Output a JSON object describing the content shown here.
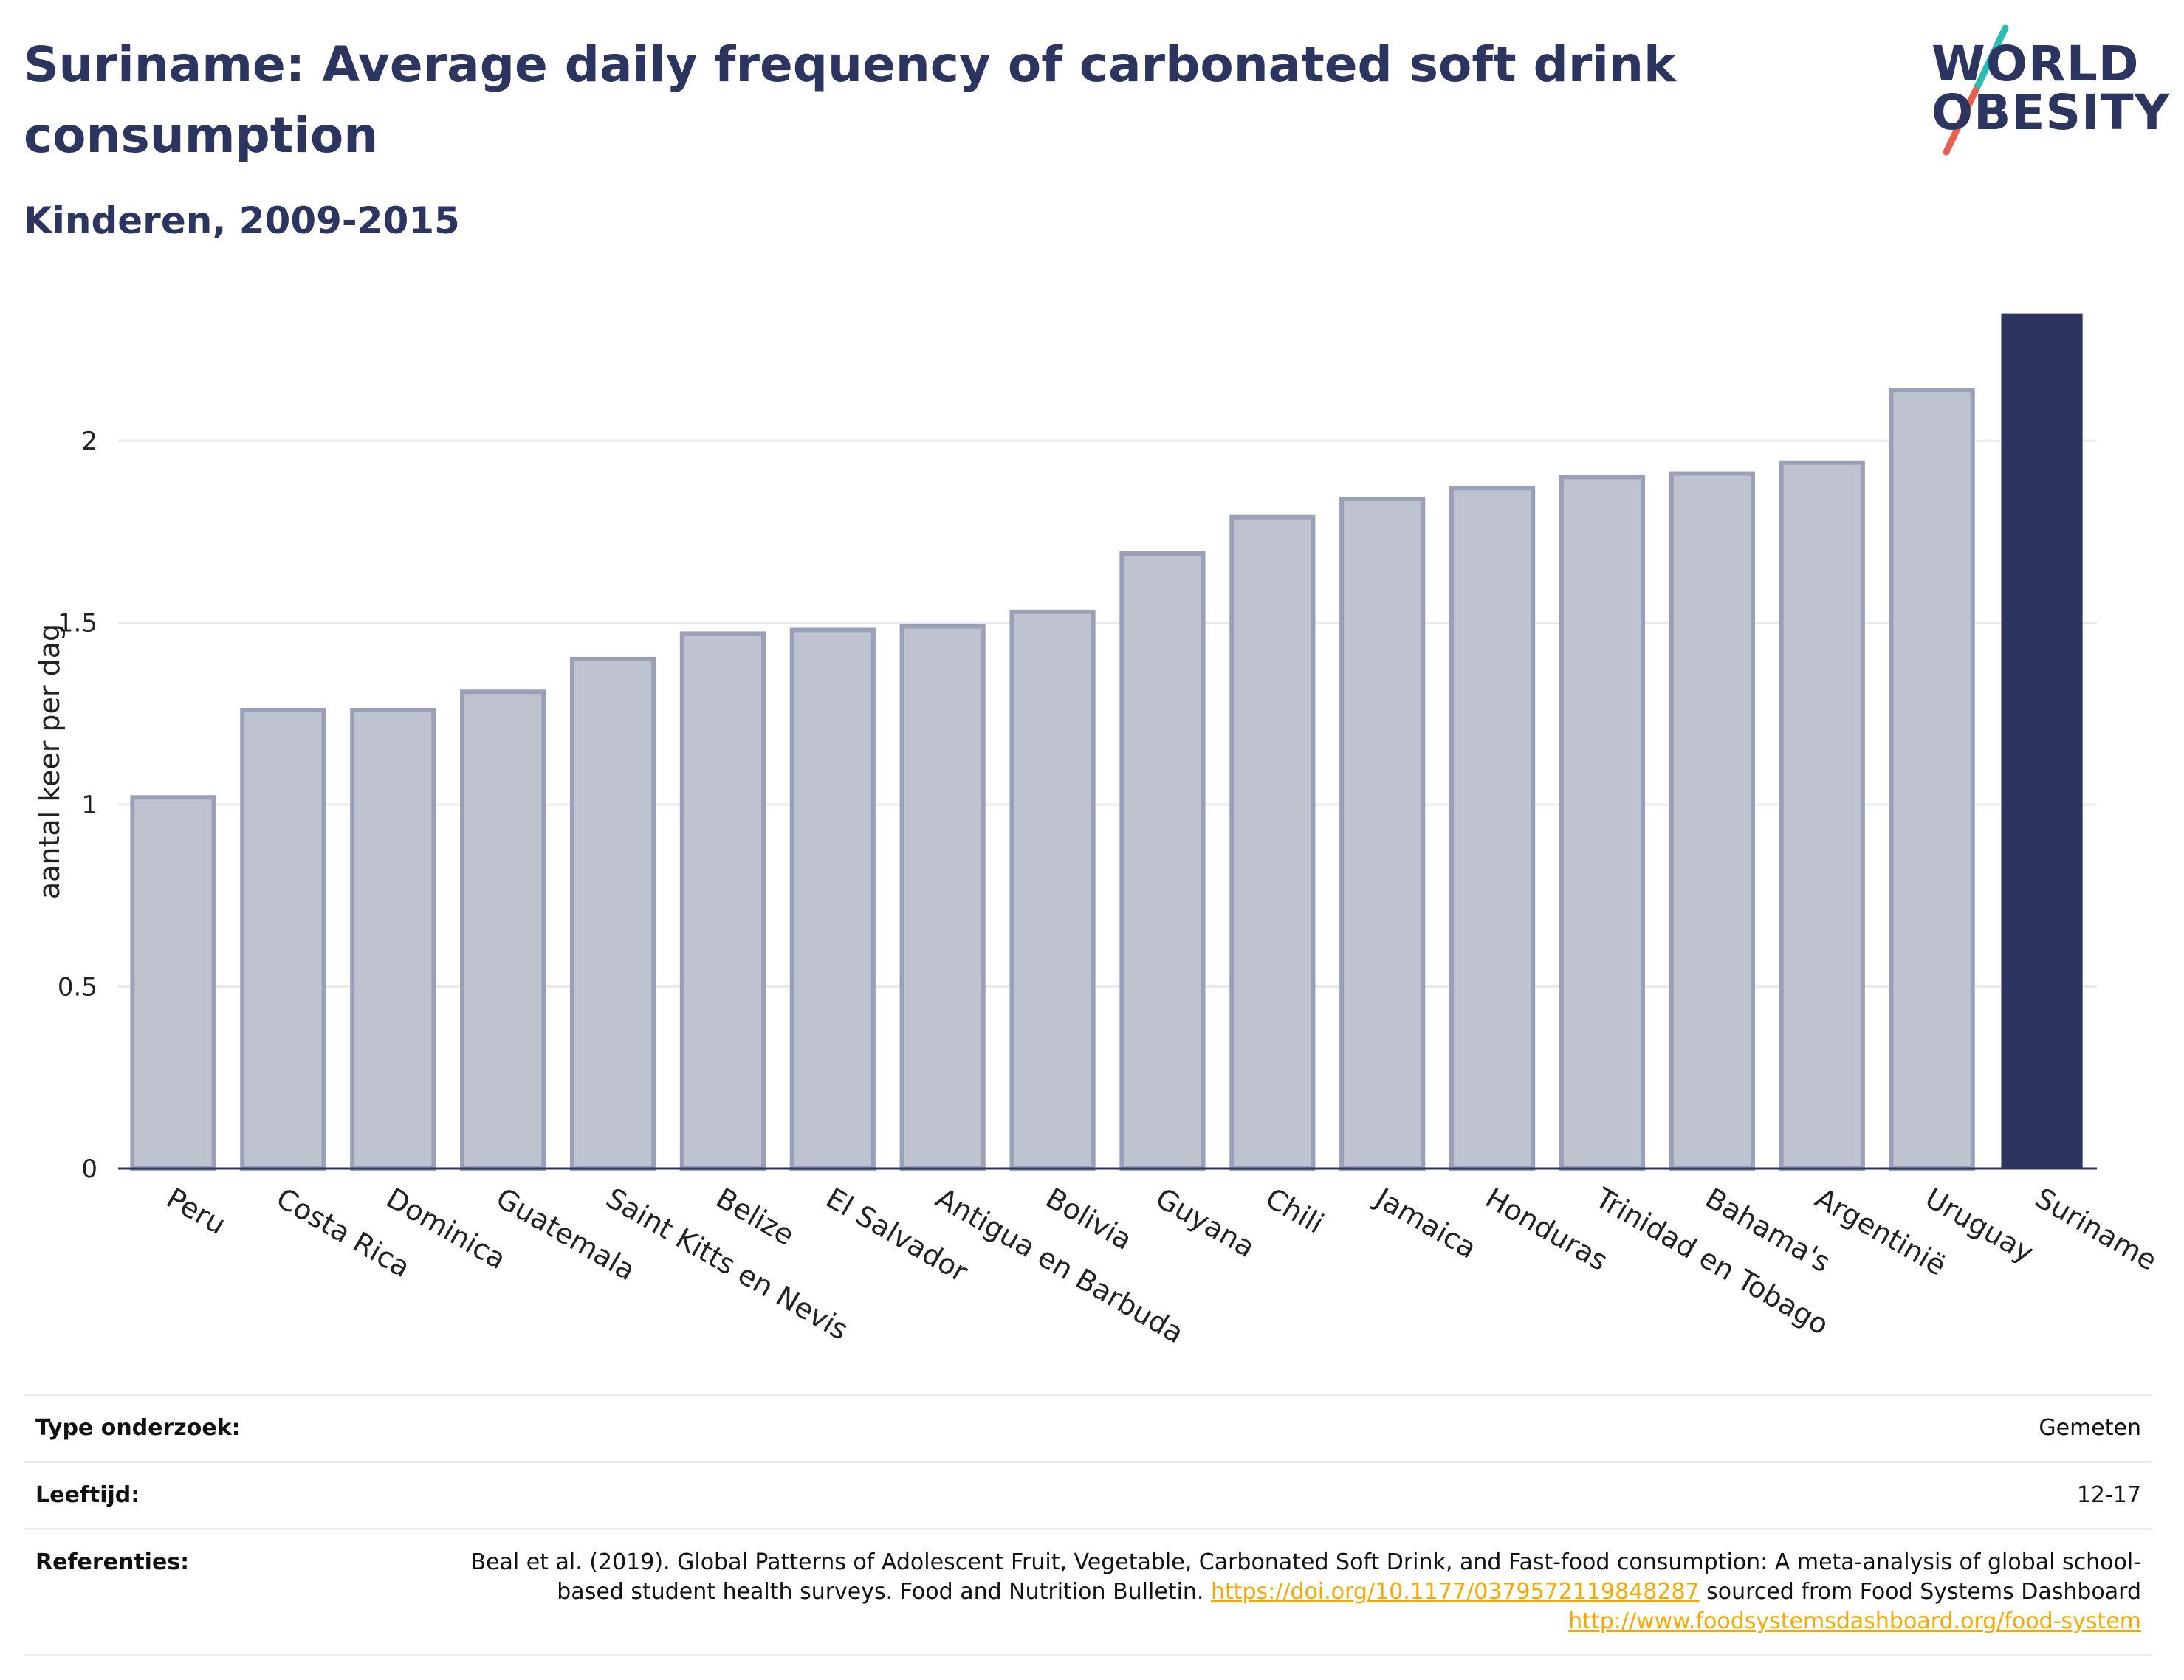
{
  "header": {
    "title": "Suriname: Average daily frequency of carbonated soft drink consumption",
    "subtitle": "Kinderen, 2009-2015"
  },
  "logo": {
    "line1": "WORLD",
    "line2": "OBESITY",
    "text_color": "#2b3560",
    "slash_colors": [
      "#2bbcb4",
      "#e8604c"
    ]
  },
  "chart_data": {
    "type": "bar",
    "title": "Suriname: Average daily frequency of carbonated soft drink consumption",
    "subtitle": "Kinderen, 2009-2015",
    "ylabel": "aantal keer per dag",
    "xlabel": "",
    "ylim": [
      0,
      2.4
    ],
    "yticks": [
      0,
      0.5,
      1,
      1.5,
      2
    ],
    "ytick_labels": [
      "0",
      "0.5",
      "1",
      "1.5",
      "2"
    ],
    "grid": true,
    "categories": [
      "Peru",
      "Costa Rica",
      "Dominica",
      "Guatemala",
      "Saint Kitts en Nevis",
      "Belize",
      "El Salvador",
      "Antigua en Barbuda",
      "Bolivia",
      "Guyana",
      "Chili",
      "Jamaica",
      "Honduras",
      "Trinidad en Tobago",
      "Bahama's",
      "Argentinië",
      "Uruguay",
      "Suriname"
    ],
    "values": [
      1.02,
      1.26,
      1.26,
      1.31,
      1.4,
      1.47,
      1.48,
      1.49,
      1.53,
      1.69,
      1.79,
      1.84,
      1.87,
      1.9,
      1.91,
      1.94,
      2.14,
      2.35
    ],
    "highlight": "Suriname",
    "colors": {
      "bar": "#bfc3d0",
      "bar_border": "#9aa0b8",
      "highlight": "#2b3560",
      "axis": "#2b3560",
      "grid": "#e8eaf0"
    }
  },
  "info": {
    "rows": [
      {
        "key": "Type onderzoek:",
        "value": "Gemeten"
      },
      {
        "key": "Leeftijd:",
        "value": "12-17"
      }
    ],
    "references": {
      "key": "Referenties:",
      "text1": "Beal et al. (2019). Global Patterns of Adolescent Fruit, Vegetable, Carbonated Soft Drink, and Fast-food consumption: A meta-analysis of global school-based student health surveys. Food and Nutrition Bulletin. ",
      "link1": "https://doi.org/10.1177/0379572119848287",
      "text2": " sourced from Food Systems Dashboard ",
      "link2": "http://www.foodsystemsdashboard.org/food-system",
      "link_color": "#f2a900"
    }
  }
}
